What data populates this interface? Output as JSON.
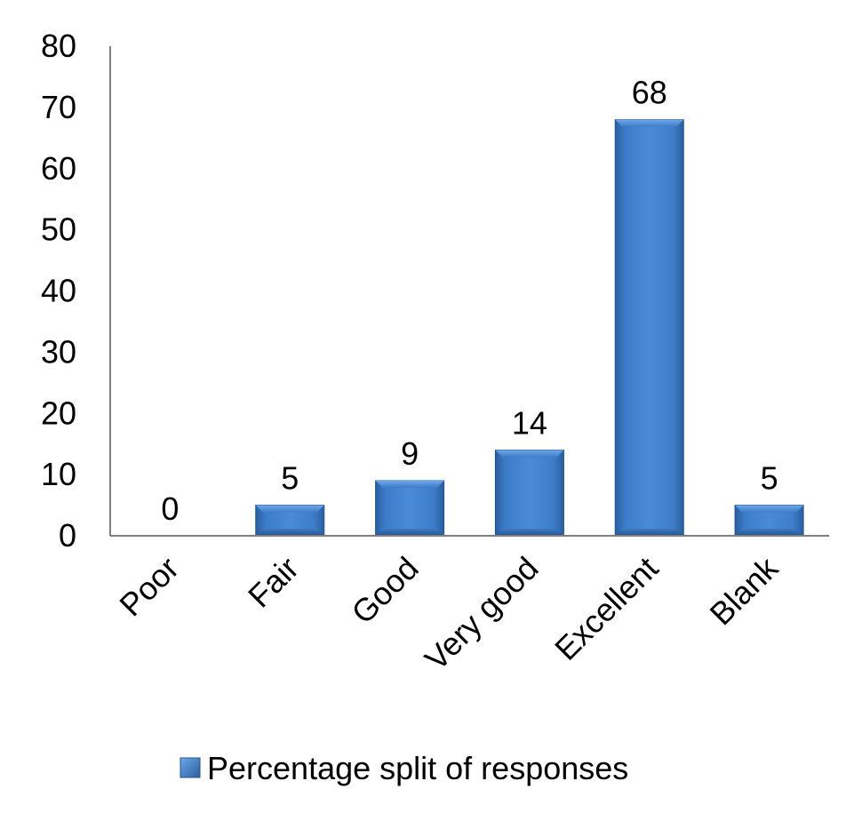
{
  "chart_data": {
    "type": "bar",
    "categories": [
      "Poor",
      "Fair",
      "Good",
      "Very good",
      "Excellent",
      "Blank"
    ],
    "series": [
      {
        "name": "Percentage split of responses",
        "values": [
          0,
          5,
          9,
          14,
          68,
          5
        ],
        "color": "#3f7cc6"
      }
    ],
    "data_labels": [
      "0",
      "5",
      "9",
      "14",
      "68",
      "5"
    ],
    "y_ticks": [
      "0",
      "10",
      "20",
      "30",
      "40",
      "50",
      "60",
      "70",
      "80"
    ],
    "ylim": [
      0,
      80
    ],
    "title": "",
    "xlabel": "",
    "ylabel": "",
    "grid": false,
    "legend": {
      "position": "bottom",
      "label": "Percentage split of responses"
    }
  }
}
